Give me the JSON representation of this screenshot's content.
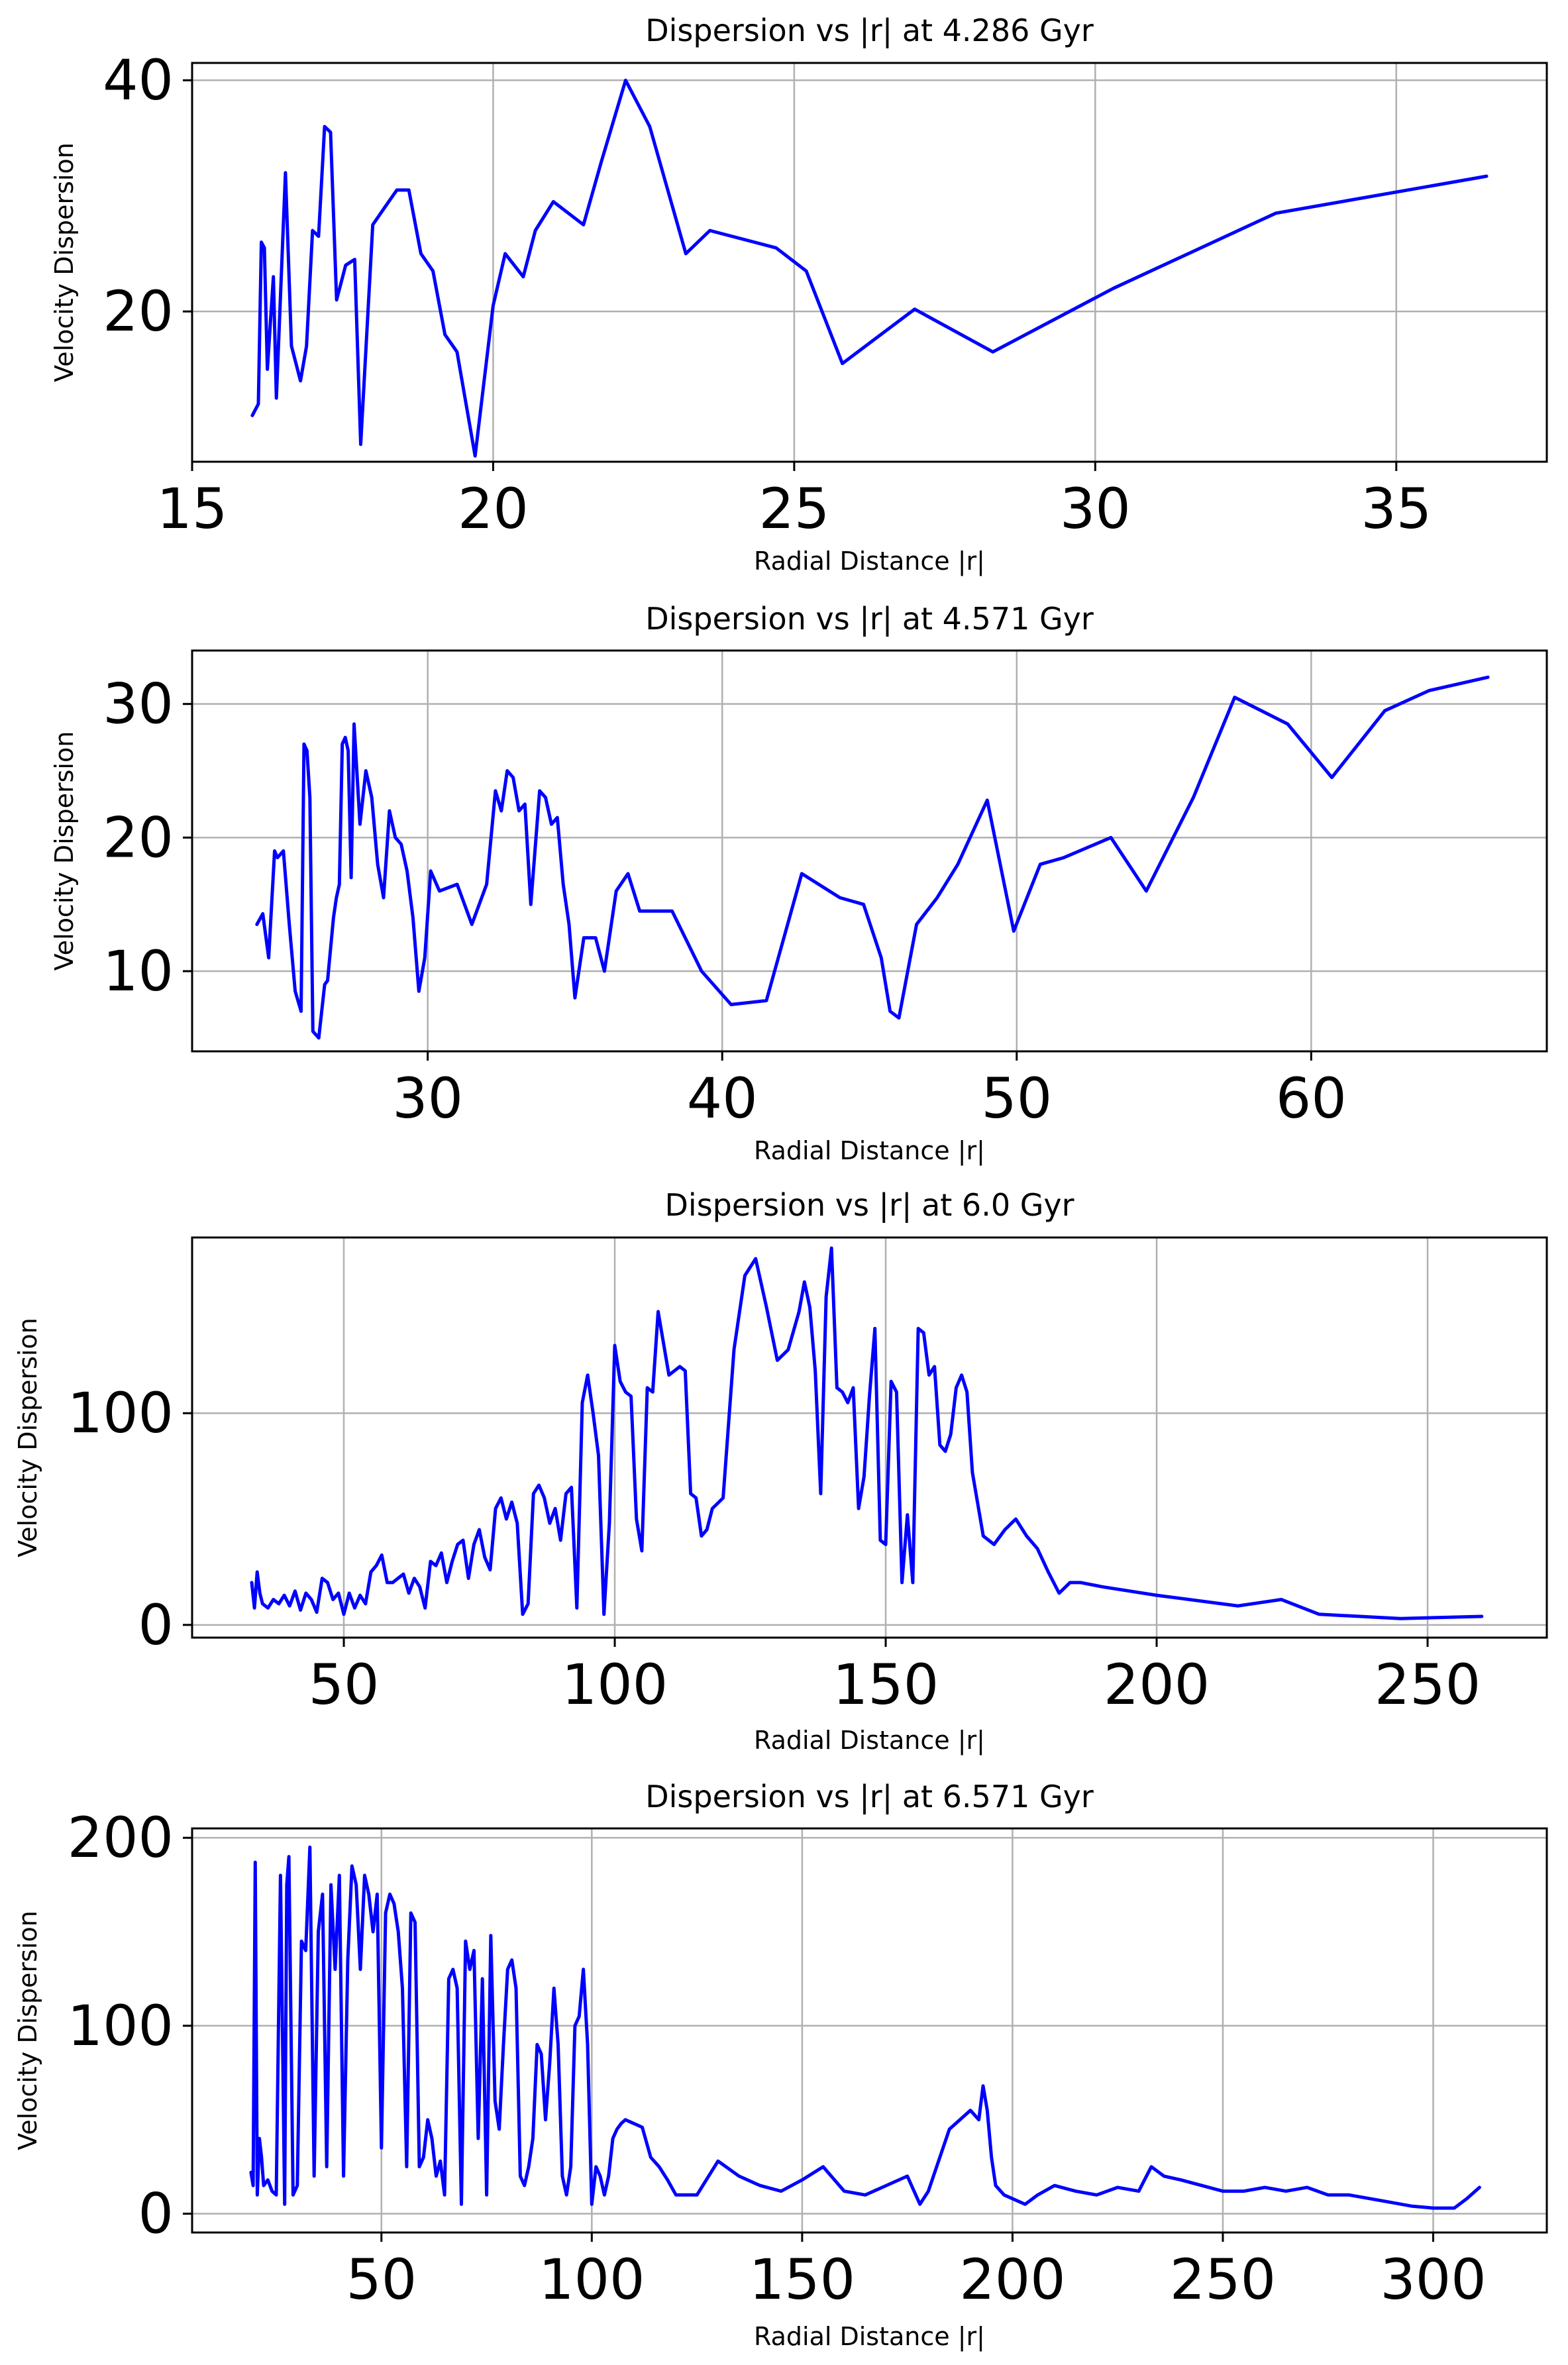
{
  "colors": {
    "line": "#0000ff",
    "grid": "#b0b0b0",
    "axes": "#000000",
    "background": "#ffffff"
  },
  "chart_data": [
    {
      "type": "line",
      "title": "Dispersion vs |r| at 4.286 Gyr",
      "xlabel": "Radial Distance |r|",
      "ylabel": "Velocity Dispersion",
      "xlim": [
        15,
        37.5
      ],
      "ylim": [
        7,
        41.5
      ],
      "xticks": [
        15,
        20,
        25,
        30,
        35
      ],
      "yticks": [
        20,
        40
      ],
      "grid": true,
      "legend": "none",
      "series": [
        {
          "x": [
            16.0,
            16.1,
            16.15,
            16.2,
            16.25,
            16.35,
            16.4,
            16.55,
            16.65,
            16.8,
            16.9,
            17.0,
            17.1,
            17.2,
            17.3,
            17.4,
            17.55,
            17.7,
            17.8,
            18.0,
            18.2,
            18.4,
            18.6,
            18.8,
            19.0,
            19.2,
            19.4,
            19.7,
            20.0,
            20.2,
            20.5,
            20.7,
            21.0,
            21.5,
            21.8,
            22.2,
            22.6,
            23.2,
            23.6,
            24.7,
            25.2,
            25.8,
            27.0,
            28.3,
            30.3,
            33.0,
            36.5
          ],
          "y": [
            11,
            12,
            26,
            25.5,
            15,
            23,
            12.5,
            32,
            17,
            14,
            17,
            27,
            26.5,
            36,
            35.5,
            21,
            24,
            24.5,
            8.5,
            27.5,
            29,
            30.5,
            30.5,
            25,
            23.5,
            18,
            16.5,
            7.5,
            20.5,
            25,
            23,
            27,
            29.5,
            27.5,
            33,
            40,
            36,
            25,
            27,
            25.5,
            23.5,
            15.5,
            20.2,
            16.5,
            22,
            28.5,
            31.7
          ]
        }
      ]
    },
    {
      "type": "line",
      "title": "Dispersion vs |r| at 4.571 Gyr",
      "xlabel": "Radial Distance |r|",
      "ylabel": "Velocity Dispersion",
      "xlim": [
        22,
        68
      ],
      "ylim": [
        4,
        34
      ],
      "xticks": [
        30,
        40,
        50,
        60
      ],
      "yticks": [
        10,
        20,
        30
      ],
      "grid": true,
      "legend": "none",
      "series": [
        {
          "x": [
            24.2,
            24.4,
            24.6,
            24.8,
            24.9,
            25.1,
            25.3,
            25.5,
            25.7,
            25.8,
            25.9,
            26.0,
            26.1,
            26.3,
            26.5,
            26.6,
            26.8,
            26.9,
            27.0,
            27.1,
            27.2,
            27.3,
            27.4,
            27.5,
            27.7,
            27.9,
            28.1,
            28.3,
            28.5,
            28.7,
            28.9,
            29.1,
            29.3,
            29.5,
            29.7,
            29.9,
            30.1,
            30.4,
            31.0,
            31.5,
            32.0,
            32.3,
            32.5,
            32.7,
            32.9,
            33.1,
            33.3,
            33.5,
            33.8,
            34.0,
            34.2,
            34.4,
            34.6,
            34.8,
            35.0,
            35.3,
            35.7,
            36.0,
            36.4,
            36.8,
            37.2,
            38.3,
            39.3,
            40.3,
            41.5,
            42.7,
            44.0,
            44.8,
            45.4,
            45.7,
            46.0,
            46.6,
            47.3,
            48.0,
            49.0,
            49.9,
            50.8,
            51.6,
            53.2,
            54.4,
            56.0,
            57.4,
            59.2,
            60.7,
            62.5,
            64.0,
            66.0
          ],
          "y": [
            13.5,
            14.3,
            11,
            19,
            18.5,
            19,
            13.5,
            8.5,
            7,
            27,
            26.5,
            23,
            5.5,
            5,
            9,
            9.3,
            14,
            15.5,
            16.5,
            27,
            27.5,
            26.5,
            17,
            28.5,
            21,
            25,
            23,
            18,
            15.5,
            22,
            20,
            19.5,
            17.5,
            14,
            8.5,
            11,
            17.5,
            16,
            16.5,
            13.5,
            16.5,
            23.5,
            22,
            25,
            24.5,
            22,
            22.5,
            15,
            23.5,
            23,
            21,
            21.5,
            16.5,
            13.5,
            8,
            12.5,
            12.5,
            10,
            16,
            17.3,
            14.5,
            14.5,
            10,
            7.5,
            7.8,
            17.3,
            15.5,
            15,
            11,
            7,
            6.5,
            13.5,
            15.5,
            18,
            22.8,
            13,
            18,
            18.5,
            20,
            16,
            23,
            30.5,
            28.5,
            24.5,
            29.5,
            31,
            32
          ]
        }
      ]
    },
    {
      "type": "line",
      "title": "Dispersion vs |r| at 6.0 Gyr",
      "xlabel": "Radial Distance |r|",
      "ylabel": "Velocity Dispersion",
      "xlim": [
        22,
        272
      ],
      "ylim": [
        -6,
        183
      ],
      "xticks": [
        50,
        100,
        150,
        200,
        250
      ],
      "yticks": [
        0,
        100
      ],
      "grid": true,
      "legend": "none",
      "series": [
        {
          "x": [
            33,
            33.5,
            34,
            34.5,
            35,
            36,
            37,
            38,
            39,
            40,
            41,
            42,
            43,
            44,
            45,
            46,
            47,
            48,
            49,
            50,
            51,
            52,
            53,
            54,
            55,
            56,
            57,
            58,
            59,
            60,
            61,
            62,
            63,
            64,
            65,
            66,
            67,
            68,
            69,
            70,
            71,
            72,
            73,
            74,
            75,
            76,
            77,
            78,
            79,
            80,
            81,
            82,
            83,
            84,
            85,
            86,
            87,
            88,
            89,
            90,
            91,
            92,
            93,
            94,
            95,
            96,
            97,
            98,
            99,
            100,
            101,
            102,
            103,
            104,
            105,
            106,
            107,
            108,
            110,
            112,
            113,
            114,
            115,
            116,
            117,
            118,
            120,
            122,
            124,
            126,
            128,
            130,
            132,
            134,
            135,
            136,
            137,
            138,
            139,
            140,
            141,
            142,
            143,
            144,
            145,
            146,
            147,
            148,
            149,
            150,
            151,
            152,
            153,
            154,
            155,
            156,
            157,
            158,
            159,
            160,
            161,
            162,
            163,
            164,
            165,
            166,
            168,
            170,
            172,
            174,
            176,
            178,
            180,
            182,
            184,
            186,
            190,
            200,
            215,
            223,
            230,
            245,
            260
          ],
          "y": [
            20,
            8,
            25,
            15,
            10,
            8,
            12,
            10,
            14,
            9,
            16,
            7,
            15,
            12,
            6,
            22,
            20,
            12,
            15,
            5,
            15,
            8,
            14,
            10,
            25,
            28,
            33,
            20,
            20,
            22,
            24,
            15,
            22,
            18,
            8,
            30,
            28,
            34,
            20,
            30,
            38,
            40,
            22,
            38,
            45,
            32,
            26,
            55,
            60,
            50,
            58,
            48,
            5,
            10,
            62,
            66,
            60,
            48,
            55,
            40,
            62,
            65,
            8,
            105,
            118,
            100,
            80,
            5,
            48,
            132,
            115,
            110,
            108,
            50,
            35,
            112,
            110,
            148,
            118,
            122,
            120,
            62,
            60,
            42,
            45,
            55,
            60,
            130,
            165,
            173,
            150,
            125,
            130,
            148,
            162,
            150,
            120,
            62,
            155,
            178,
            112,
            110,
            105,
            112,
            55,
            70,
            108,
            140,
            40,
            38,
            115,
            110,
            20,
            52,
            20,
            140,
            138,
            118,
            122,
            85,
            82,
            90,
            112,
            118,
            110,
            72,
            42,
            38,
            45,
            50,
            42,
            36,
            25,
            15,
            20,
            20,
            18,
            14,
            9,
            12,
            5,
            3,
            4
          ]
        }
      ]
    },
    {
      "type": "line",
      "title": "Dispersion vs |r| at 6.571 Gyr",
      "xlabel": "Radial Distance |r|",
      "ylabel": "Velocity Dispersion",
      "xlim": [
        5,
        327
      ],
      "ylim": [
        -10,
        205
      ],
      "xticks": [
        50,
        100,
        150,
        200,
        250,
        300
      ],
      "yticks": [
        0,
        100,
        200
      ],
      "grid": true,
      "legend": "none",
      "series": [
        {
          "x": [
            19,
            19.5,
            20,
            20.5,
            21,
            21.5,
            22,
            23,
            24,
            25,
            26,
            27,
            27.5,
            28,
            29,
            30,
            31,
            32,
            33,
            34,
            35,
            36,
            37,
            38,
            39,
            40,
            41,
            42,
            43,
            44,
            45,
            46,
            47,
            48,
            49,
            50,
            51,
            52,
            53,
            54,
            55,
            56,
            57,
            58,
            59,
            60,
            61,
            62,
            63,
            64,
            65,
            66,
            67,
            68,
            69,
            70,
            71,
            72,
            73,
            74,
            75,
            76,
            77,
            78,
            79,
            80,
            81,
            82,
            83,
            84,
            85,
            86,
            87,
            88,
            89,
            90,
            91,
            92,
            93,
            94,
            95,
            96,
            97,
            98,
            99,
            100,
            101,
            102,
            103,
            104,
            105,
            106,
            107,
            108,
            110,
            112,
            114,
            116,
            118,
            120,
            125,
            130,
            135,
            140,
            145,
            150,
            155,
            160,
            165,
            170,
            175,
            178,
            180,
            185,
            190,
            192,
            193,
            194,
            195,
            196,
            198,
            200,
            203,
            206,
            210,
            215,
            220,
            225,
            230,
            233,
            236,
            240,
            245,
            250,
            255,
            260,
            265,
            270,
            275,
            280,
            285,
            290,
            295,
            300,
            305,
            308,
            311
          ],
          "y": [
            22,
            15,
            187,
            10,
            40,
            30,
            15,
            18,
            12,
            10,
            180,
            5,
            175,
            190,
            10,
            15,
            145,
            140,
            195,
            20,
            150,
            170,
            25,
            175,
            130,
            180,
            20,
            135,
            185,
            175,
            130,
            180,
            170,
            150,
            170,
            35,
            160,
            170,
            165,
            150,
            120,
            25,
            160,
            155,
            25,
            30,
            50,
            40,
            20,
            28,
            10,
            125,
            130,
            120,
            5,
            145,
            130,
            140,
            40,
            125,
            10,
            148,
            60,
            45,
            90,
            130,
            135,
            120,
            20,
            15,
            25,
            40,
            90,
            85,
            50,
            80,
            120,
            90,
            20,
            10,
            25,
            100,
            105,
            130,
            90,
            5,
            25,
            20,
            10,
            20,
            40,
            45,
            48,
            50,
            48,
            46,
            30,
            25,
            18,
            10,
            10,
            28,
            20,
            15,
            12,
            18,
            25,
            12,
            10,
            15,
            20,
            5,
            12,
            45,
            55,
            50,
            68,
            55,
            30,
            15,
            10,
            8,
            5,
            10,
            15,
            12,
            10,
            14,
            12,
            25,
            20,
            18,
            15,
            12,
            12,
            14,
            12,
            14,
            10,
            10,
            8,
            6,
            4,
            3,
            3,
            8,
            14
          ]
        }
      ]
    }
  ]
}
